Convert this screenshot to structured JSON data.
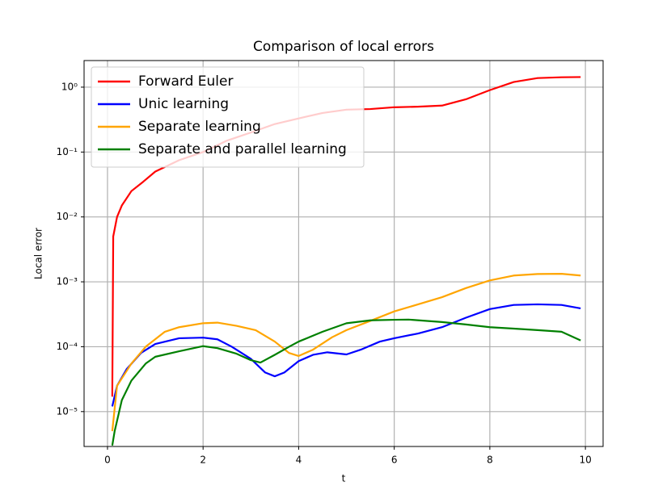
{
  "chart_data": {
    "type": "line",
    "title": "Comparison of local errors",
    "x_label": "t",
    "y_label": "Local error",
    "log_y": true,
    "grid": true,
    "legend": "upper left",
    "xlim": [
      -0.49,
      10.37
    ],
    "ylim": [
      2.9e-06,
      2.57
    ],
    "xticks": [
      0,
      2,
      4,
      6,
      8,
      10
    ],
    "yticks": [
      {
        "value": 1e-05,
        "label": "10⁻⁵"
      },
      {
        "value": 0.0001,
        "label": "10⁻⁴"
      },
      {
        "value": 0.001,
        "label": "10⁻³"
      },
      {
        "value": 0.01,
        "label": "10⁻²"
      },
      {
        "value": 0.1,
        "label": "10⁻¹"
      },
      {
        "value": 1,
        "label": "10⁰"
      }
    ],
    "series": [
      {
        "name": "Forward Euler",
        "color": "#ff0000",
        "x": [
          0.1,
          0.12,
          0.2,
          0.3,
          0.5,
          0.75,
          1,
          1.5,
          2,
          2.5,
          3,
          3.5,
          4,
          4.5,
          5,
          5.5,
          6,
          6.5,
          7,
          7.5,
          8,
          8.5,
          9,
          9.5,
          9.9
        ],
        "values": [
          1.7e-05,
          0.005,
          0.01,
          0.015,
          0.025,
          0.035,
          0.05,
          0.075,
          0.1,
          0.15,
          0.2,
          0.27,
          0.33,
          0.4,
          0.45,
          0.46,
          0.49,
          0.5,
          0.52,
          0.65,
          0.9,
          1.2,
          1.38,
          1.42,
          1.43
        ]
      },
      {
        "name": "Unic learning",
        "color": "#0000ff",
        "x": [
          0.1,
          0.2,
          0.4,
          0.7,
          1,
          1.5,
          2,
          2.3,
          2.6,
          3,
          3.3,
          3.5,
          3.7,
          4,
          4.3,
          4.6,
          5,
          5.3,
          5.7,
          6,
          6.5,
          7,
          7.5,
          8,
          8.5,
          9,
          9.5,
          9.9
        ],
        "values": [
          1.2e-05,
          2.5e-05,
          4.5e-05,
          8e-05,
          0.00011,
          0.000135,
          0.000138,
          0.00013,
          0.0001,
          6.5e-05,
          4e-05,
          3.5e-05,
          4e-05,
          6e-05,
          7.5e-05,
          8.2e-05,
          7.6e-05,
          9e-05,
          0.00012,
          0.000135,
          0.00016,
          0.0002,
          0.00028,
          0.00038,
          0.00044,
          0.00045,
          0.00044,
          0.00039
        ]
      },
      {
        "name": "Separate learning",
        "color": "#ffa500",
        "x": [
          0.1,
          0.2,
          0.5,
          0.8,
          1.2,
          1.5,
          2,
          2.3,
          2.7,
          3.1,
          3.5,
          3.8,
          4,
          4.3,
          4.7,
          5,
          5.5,
          6,
          6.5,
          7,
          7.5,
          8,
          8.5,
          9,
          9.5,
          9.9
        ],
        "values": [
          5e-06,
          2.5e-05,
          5.5e-05,
          0.0001,
          0.00017,
          0.0002,
          0.00023,
          0.000235,
          0.00021,
          0.00018,
          0.00012,
          8e-05,
          7.2e-05,
          9e-05,
          0.00014,
          0.00018,
          0.00025,
          0.00035,
          0.00045,
          0.00058,
          0.0008,
          0.00105,
          0.00125,
          0.00132,
          0.00133,
          0.00125
        ]
      },
      {
        "name": "Separate and parallel learning",
        "color": "#008000",
        "x": [
          0.1,
          0.15,
          0.3,
          0.5,
          0.8,
          1,
          1.5,
          2,
          2.3,
          2.7,
          3,
          3.2,
          3.5,
          3.8,
          4,
          4.5,
          5,
          5.5,
          6,
          6.3,
          7,
          7.5,
          8,
          8.5,
          9,
          9.5,
          9.9
        ],
        "values": [
          3e-06,
          5e-06,
          1.5e-05,
          3e-05,
          5.5e-05,
          7e-05,
          8.5e-05,
          0.000102,
          9.5e-05,
          7.8e-05,
          6.2e-05,
          5.7e-05,
          7.5e-05,
          0.0001,
          0.00012,
          0.00017,
          0.00023,
          0.000255,
          0.00026,
          0.000262,
          0.00024,
          0.00022,
          0.0002,
          0.00019,
          0.00018,
          0.00017,
          0.000125
        ]
      }
    ]
  }
}
